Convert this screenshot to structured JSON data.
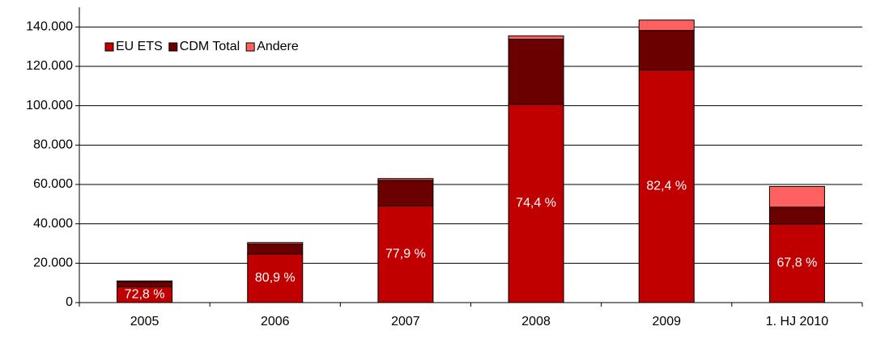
{
  "chart_data": {
    "type": "stacked_bar",
    "categories": [
      "2005",
      "2006",
      "2007",
      "2008",
      "2009",
      "1. HJ 2010"
    ],
    "series": [
      {
        "name": "EU ETS",
        "color": "#c00000",
        "values": [
          8000,
          24700,
          49100,
          100800,
          118200,
          40000
        ]
      },
      {
        "name": "CDM Total",
        "color": "#6b0000",
        "values": [
          2700,
          5000,
          13000,
          33000,
          20000,
          8500
        ]
      },
      {
        "name": "Andere",
        "color": "#ff6060",
        "values": [
          300,
          800,
          900,
          1700,
          5300,
          10500
        ]
      }
    ],
    "share_labels": [
      "72,8 %",
      "80,9 %",
      "77,9 %",
      "74,4 %",
      "82,4 %",
      "67,8 %"
    ],
    "ylim": [
      0,
      150000
    ],
    "yticks": [
      0,
      {
        "value": 20000,
        "label": "20.000"
      },
      {
        "value": 40000,
        "label": "40.000"
      },
      {
        "value": 60000,
        "label": "60.000"
      },
      {
        "value": 80000,
        "label": "80.000"
      },
      {
        "value": 100000,
        "label": "100.000"
      },
      {
        "value": 120000,
        "label": "120.000"
      },
      {
        "value": 140000,
        "label": "140.000"
      }
    ],
    "grid": true,
    "legend": "top-left"
  }
}
